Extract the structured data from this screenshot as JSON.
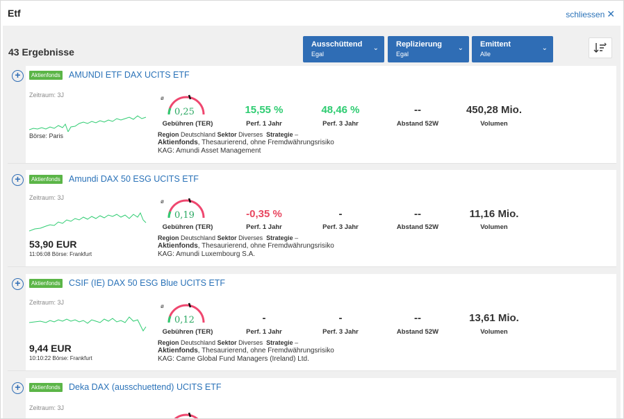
{
  "header": {
    "title": "Etf",
    "close_label": "schliessen"
  },
  "results": {
    "count_label": "43 Ergebnisse"
  },
  "filters": [
    {
      "label": "Ausschüttend",
      "value": "Egal"
    },
    {
      "label": "Replizierung",
      "value": "Egal"
    },
    {
      "label": "Emittent",
      "value": "Alle"
    }
  ],
  "labels": {
    "zeitraum": "Zeitraum: 3J",
    "oslash": "ø",
    "ter": "Gebühren (TER)",
    "perf1": "Perf. 1 Jahr",
    "perf3": "Perf. 3 Jahr",
    "abstand": "Abstand 52W",
    "volumen": "Volumen",
    "region": "Region",
    "sektor": "Sektor",
    "strategie": "Strategie"
  },
  "funds": [
    {
      "badge": "Aktienfonds",
      "name": "AMUNDI ETF DAX UCITS ETF",
      "boerse": "Börse: Paris",
      "price": "",
      "price_meta": "",
      "ter": "0,25",
      "ter_level": 0.25,
      "perf1": "15,55 %",
      "perf3": "48,46 %",
      "abstand": "--",
      "volumen": "450,28 Mio.",
      "region": "Deutschland",
      "sektor": "Diverses",
      "strategie": "–",
      "type_bold": "Aktienfonds",
      "type_rest": ", Thesaurierend, ohne Fremdwährungsrisiko",
      "kag": "KAG: Amundi Asset Management"
    },
    {
      "badge": "Aktienfonds",
      "name": "Amundi DAX 50 ESG UCITS ETF",
      "boerse": "",
      "price": "53,90 EUR",
      "price_meta": "11:06:08 Börse: Frankfurt",
      "ter": "0,19",
      "ter_level": 0.19,
      "perf1": "-0,35 %",
      "perf3": "-",
      "abstand": "--",
      "volumen": "11,16 Mio.",
      "region": "Deutschland",
      "sektor": "Diverses",
      "strategie": "–",
      "type_bold": "Aktienfonds",
      "type_rest": ", Thesaurierend, ohne Fremdwährungsrisiko",
      "kag": "KAG: Amundi Luxembourg S.A."
    },
    {
      "badge": "Aktienfonds",
      "name": "CSIF (IE) DAX 50 ESG Blue UCITS ETF",
      "boerse": "",
      "price": "9,44 EUR",
      "price_meta": "10:10:22 Börse: Frankfurt",
      "ter": "0,12",
      "ter_level": 0.12,
      "perf1": "-",
      "perf3": "-",
      "abstand": "--",
      "volumen": "13,61 Mio.",
      "region": "Deutschland",
      "sektor": "Diverses",
      "strategie": "–",
      "type_bold": "Aktienfonds",
      "type_rest": ", Thesaurierend, ohne Fremdwährungsrisiko",
      "kag": "KAG: Carne Global Fund Managers (Ireland) Ltd."
    },
    {
      "badge": "Aktienfonds",
      "name": "Deka DAX (ausschuettend) UCITS ETF"
    }
  ],
  "colors": {
    "accent": "#2f6db5",
    "link": "#2a72b8",
    "positive": "#2ecc71",
    "negative": "#e8465f",
    "badge": "#5bb547",
    "spark": "#2ecc71"
  }
}
